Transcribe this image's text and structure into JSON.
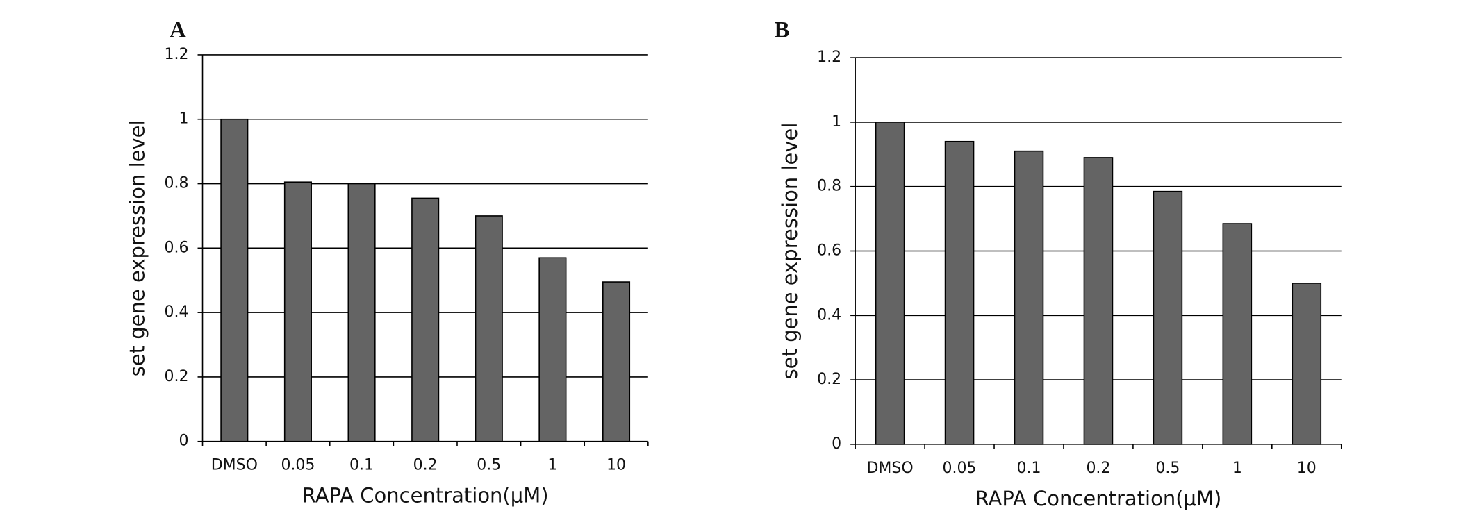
{
  "chart_data": [
    {
      "type": "bar",
      "panel": "A",
      "xlabel": "RAPA Concentration(μM)",
      "ylabel": "set gene expression level",
      "categories": [
        "DMSO",
        "0.05",
        "0.1",
        "0.2",
        "0.5",
        "1",
        "10"
      ],
      "values": [
        1,
        0.805,
        0.8,
        0.755,
        0.7,
        0.57,
        0.495
      ],
      "color": "#646464",
      "ylim": [
        0,
        1.2
      ],
      "yticks": [
        0,
        0.2,
        0.4,
        0.6,
        0.8,
        1,
        1.2
      ],
      "grid": true
    },
    {
      "type": "bar",
      "panel": "B",
      "xlabel": "RAPA Concentration(μM)",
      "ylabel": "set gene expression level",
      "categories": [
        "DMSO",
        "0.05",
        "0.1",
        "0.2",
        "0.5",
        "1",
        "10"
      ],
      "values": [
        1,
        0.94,
        0.91,
        0.89,
        0.785,
        0.685,
        0.5
      ],
      "color": "#646464",
      "ylim": [
        0,
        1.2
      ],
      "yticks": [
        0,
        0.2,
        0.4,
        0.6,
        0.8,
        1,
        1.2
      ],
      "grid": true
    }
  ]
}
